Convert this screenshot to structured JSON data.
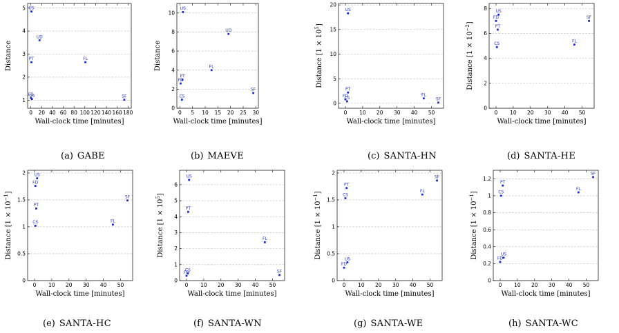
{
  "chart_data": [
    {
      "type": "scatter",
      "caption_tag": "(a)",
      "caption_name": "GABE",
      "xlabel": "Wall-clock time [minutes]",
      "ylabel": "Distance",
      "xlim": [
        -6,
        186
      ],
      "ylim": [
        0.65,
        5.2
      ],
      "xticks": [
        0,
        20,
        40,
        60,
        80,
        100,
        120,
        140,
        160,
        180
      ],
      "yticks": [
        1,
        2,
        3,
        4,
        5
      ],
      "points": [
        {
          "label": "US",
          "x": 1,
          "y": 4.85
        },
        {
          "label": "UD",
          "x": 16,
          "y": 3.6
        },
        {
          "label": "PT",
          "x": 1,
          "y": 2.65
        },
        {
          "label": "FL",
          "x": 101,
          "y": 2.65
        },
        {
          "label": "FD",
          "x": 0,
          "y": 1.1
        },
        {
          "label": "CS",
          "x": 2,
          "y": 1.05
        },
        {
          "label": "SF",
          "x": 173,
          "y": 1.02
        }
      ]
    },
    {
      "type": "scatter",
      "caption_tag": "(b)",
      "caption_name": "MAEVE",
      "xlabel": "Wall-clock time [minutes]",
      "ylabel": "Distance",
      "xlim": [
        -1.2,
        31
      ],
      "ylim": [
        0,
        11
      ],
      "xticks": [
        0,
        5,
        10,
        15,
        20,
        25,
        30
      ],
      "yticks": [
        0,
        2,
        4,
        6,
        8,
        10
      ],
      "points": [
        {
          "label": "US",
          "x": 1.2,
          "y": 10.1
        },
        {
          "label": "UD",
          "x": 19.2,
          "y": 7.8
        },
        {
          "label": "FL",
          "x": 12.5,
          "y": 4.0
        },
        {
          "label": "PT",
          "x": 1.0,
          "y": 3.0
        },
        {
          "label": "FD",
          "x": 0.3,
          "y": 2.6
        },
        {
          "label": "SF",
          "x": 29,
          "y": 1.6
        },
        {
          "label": "CS",
          "x": 0.8,
          "y": 0.9
        }
      ]
    },
    {
      "type": "scatter",
      "caption_tag": "(c)",
      "caption_name": "SANTA-HN",
      "xlabel": "Wall-clock time [minutes]",
      "ylabel": "Distance [1 × 10",
      "ylabel_exp": "5",
      "ylabel_end": "]",
      "xlim": [
        -4,
        57
      ],
      "ylim": [
        -1,
        20.3
      ],
      "xticks": [
        0,
        10,
        20,
        30,
        40,
        50
      ],
      "yticks": [
        0,
        5,
        10,
        15,
        20
      ],
      "points": [
        {
          "label": "US",
          "x": 1.5,
          "y": 18.3
        },
        {
          "label": "PT",
          "x": 1.5,
          "y": 2.2
        },
        {
          "label": "FD",
          "x": 0,
          "y": 0.8
        },
        {
          "label": "CS",
          "x": 1,
          "y": 0.4
        },
        {
          "label": "FL",
          "x": 45.5,
          "y": 1.0
        },
        {
          "label": "SF",
          "x": 54,
          "y": 0.15
        }
      ]
    },
    {
      "type": "scatter",
      "caption_tag": "(d)",
      "caption_name": "SANTA-HE",
      "xlabel": "Wall-clock time [minutes]",
      "ylabel": "Distance [1 × 10",
      "ylabel_exp": "−2",
      "ylabel_end": "]",
      "xlim": [
        -4,
        57
      ],
      "ylim": [
        0,
        8.4
      ],
      "xticks": [
        0,
        10,
        20,
        30,
        40,
        50
      ],
      "yticks": [
        0,
        2,
        4,
        6,
        8
      ],
      "points": [
        {
          "label": "US",
          "x": 1.5,
          "y": 7.5
        },
        {
          "label": "FD",
          "x": 0,
          "y": 7.0
        },
        {
          "label": "PT",
          "x": 1,
          "y": 6.3
        },
        {
          "label": "CS",
          "x": 0.5,
          "y": 4.9
        },
        {
          "label": "FL",
          "x": 45.5,
          "y": 5.1
        },
        {
          "label": "SF",
          "x": 54,
          "y": 7.0
        }
      ]
    },
    {
      "type": "scatter",
      "caption_tag": "(e)",
      "caption_name": "SANTA-HC",
      "xlabel": "Wall-clock time [minutes]",
      "ylabel": "Distance [1 × 10",
      "ylabel_exp": "−1",
      "ylabel_end": "]",
      "xlim": [
        -4,
        57
      ],
      "ylim": [
        0,
        2.05
      ],
      "xticks": [
        0,
        10,
        20,
        30,
        40,
        50
      ],
      "yticks": [
        0,
        0.5,
        1,
        1.5,
        2
      ],
      "points": [
        {
          "label": "US",
          "x": 1.5,
          "y": 1.9
        },
        {
          "label": "FD",
          "x": 0.5,
          "y": 1.76
        },
        {
          "label": "PT",
          "x": 1,
          "y": 1.34
        },
        {
          "label": "CS",
          "x": 0.5,
          "y": 1.02
        },
        {
          "label": "FL",
          "x": 45.5,
          "y": 1.04
        },
        {
          "label": "SF",
          "x": 54,
          "y": 1.49
        }
      ]
    },
    {
      "type": "scatter",
      "caption_tag": "(f)",
      "caption_name": "SANTA-WN",
      "xlabel": "Wall-clock time [minutes]",
      "ylabel": "Distance [1 × 10",
      "ylabel_exp": "5",
      "ylabel_end": "]",
      "xlim": [
        -4,
        57
      ],
      "ylim": [
        0,
        6.9
      ],
      "xticks": [
        0,
        10,
        20,
        30,
        40,
        50
      ],
      "yticks": [
        0,
        1,
        2,
        3,
        4,
        5,
        6
      ],
      "points": [
        {
          "label": "US",
          "x": 1.5,
          "y": 6.3
        },
        {
          "label": "PT",
          "x": 1,
          "y": 4.3
        },
        {
          "label": "CS",
          "x": 0.8,
          "y": 0.45
        },
        {
          "label": "FD",
          "x": 0,
          "y": 0.3
        },
        {
          "label": "FL",
          "x": 45.5,
          "y": 2.4
        },
        {
          "label": "SF",
          "x": 54,
          "y": 0.35
        }
      ]
    },
    {
      "type": "scatter",
      "caption_tag": "(g)",
      "caption_name": "SANTA-WE",
      "xlabel": "Wall-clock time [minutes]",
      "ylabel": "Distance [1 × 10",
      "ylabel_exp": "−1",
      "ylabel_end": "]",
      "xlim": [
        -4,
        57
      ],
      "ylim": [
        0,
        2.05
      ],
      "xticks": [
        0,
        10,
        20,
        30,
        40,
        50
      ],
      "yticks": [
        0,
        0.5,
        1,
        1.5,
        2
      ],
      "points": [
        {
          "label": "PT",
          "x": 1.5,
          "y": 1.72
        },
        {
          "label": "CS",
          "x": 0.8,
          "y": 1.53
        },
        {
          "label": "FL",
          "x": 45.5,
          "y": 1.6
        },
        {
          "label": "SF",
          "x": 54,
          "y": 1.86
        },
        {
          "label": "US",
          "x": 2,
          "y": 0.34
        },
        {
          "label": "FD",
          "x": 0,
          "y": 0.24
        }
      ]
    },
    {
      "type": "scatter",
      "caption_tag": "(h)",
      "caption_name": "SANTA-WC",
      "xlabel": "Wall-clock time [minutes]",
      "ylabel": "Distance [1 × 10",
      "ylabel_exp": "−1",
      "ylabel_end": "]",
      "xlim": [
        -4,
        57
      ],
      "ylim": [
        0,
        1.3
      ],
      "xticks": [
        0,
        10,
        20,
        30,
        40,
        50
      ],
      "yticks": [
        0,
        0.2,
        0.4,
        0.6,
        0.8,
        1,
        1.2
      ],
      "points": [
        {
          "label": "PT",
          "x": 1.5,
          "y": 1.12
        },
        {
          "label": "CS",
          "x": 0.5,
          "y": 1.0
        },
        {
          "label": "FL",
          "x": 45.5,
          "y": 1.04
        },
        {
          "label": "SF",
          "x": 54,
          "y": 1.22
        },
        {
          "label": "US",
          "x": 2,
          "y": 0.27
        },
        {
          "label": "FD",
          "x": 0,
          "y": 0.22
        }
      ]
    }
  ]
}
